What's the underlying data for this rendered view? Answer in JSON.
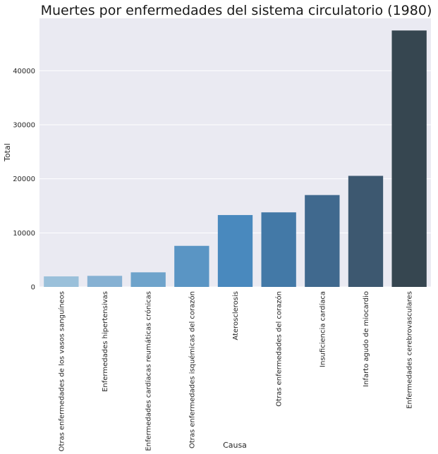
{
  "chart_data": {
    "type": "bar",
    "title": "Muertes por enfermedades del sistema circulatorio (1980)",
    "xlabel": "Causa",
    "ylabel": "Total",
    "ylim": [
      0,
      49700
    ],
    "yticks": [
      0,
      10000,
      20000,
      30000,
      40000
    ],
    "grid": true,
    "categories": [
      "Otras enfermedades de los vasos sanguíneos",
      "Enfermedades hipertensivas",
      "Enfermedades cardíacas reumáticas crónicas",
      "Otras enfermedades isquémicas del corazón",
      "Aterosclerosis",
      "Otras enfermedades del corazón",
      "Insuficiencia cardíaca",
      "Infarto agudo de miocardio",
      "Enfermedades cerebrovasculares"
    ],
    "values": [
      1950,
      2050,
      2700,
      7600,
      13300,
      13800,
      17000,
      20550,
      47450
    ],
    "colors": [
      "#9ac0da",
      "#86b1d3",
      "#6ea3cb",
      "#5a95c4",
      "#4989be",
      "#4379a7",
      "#40698e",
      "#3d5870",
      "#364650"
    ],
    "background_color": "#eaeaf2",
    "grid_color": "#ffffff"
  }
}
